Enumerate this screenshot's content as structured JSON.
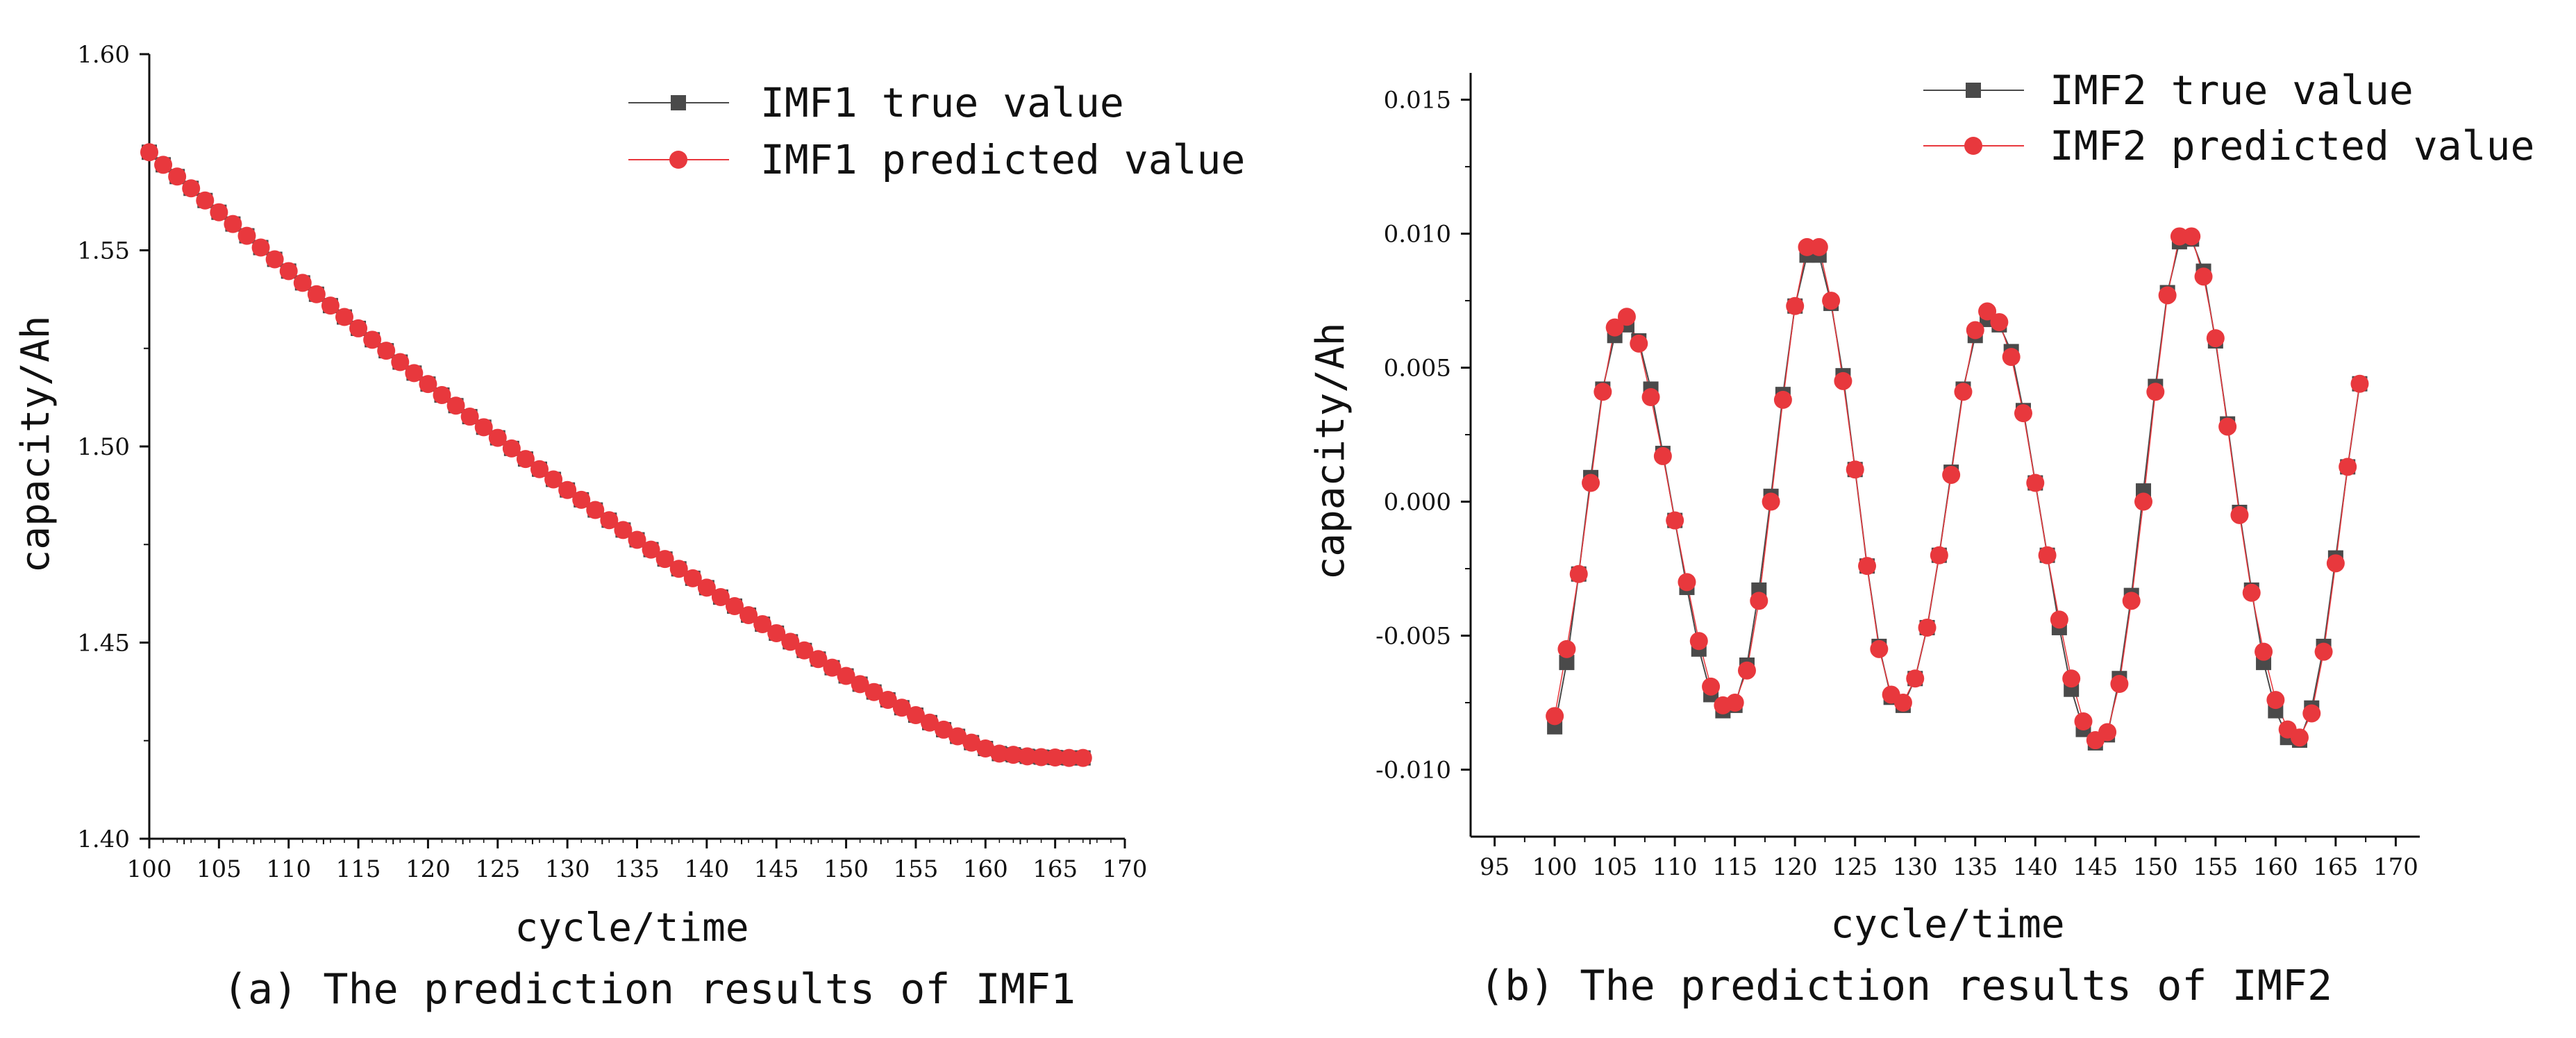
{
  "chart_data": [
    {
      "type": "line",
      "caption": "(a) The prediction results of IMF1",
      "xlabel": "cycle/time",
      "ylabel": "capacity/Ah",
      "xlim": [
        100,
        170
      ],
      "ylim": [
        1.4,
        1.6
      ],
      "x_ticks": [
        "100",
        "105",
        "110",
        "115",
        "120",
        "125",
        "130",
        "135",
        "140",
        "145",
        "150",
        "155",
        "160",
        "165",
        "170"
      ],
      "y_ticks": [
        "1.40",
        "1.45",
        "1.50",
        "1.55",
        "1.60"
      ],
      "legend_position": "top-right",
      "x_range": [
        100,
        167
      ],
      "series": [
        {
          "name": "IMF1 true value",
          "marker": "square",
          "color": "#4a4a4a",
          "values": [
            1.575,
            1.5718,
            1.5688,
            1.5658,
            1.5627,
            1.5597,
            1.5567,
            1.5537,
            1.5507,
            1.5477,
            1.5447,
            1.5417,
            1.5388,
            1.5359,
            1.533,
            1.5301,
            1.5272,
            1.5244,
            1.5215,
            1.5187,
            1.5159,
            1.5131,
            1.5104,
            1.5076,
            1.5049,
            1.5022,
            1.4995,
            1.4968,
            1.4942,
            1.4916,
            1.4889,
            1.4864,
            1.4838,
            1.4812,
            1.4787,
            1.4762,
            1.4737,
            1.4713,
            1.4688,
            1.4664,
            1.464,
            1.4616,
            1.4593,
            1.457,
            1.4547,
            1.4524,
            1.4502,
            1.448,
            1.4458,
            1.4436,
            1.4415,
            1.4394,
            1.4374,
            1.4354,
            1.4334,
            1.4315,
            1.4296,
            1.4278,
            1.4261,
            1.4245,
            1.423,
            1.4217,
            1.4214,
            1.421,
            1.4208,
            1.4207,
            1.4206,
            1.4206
          ]
        },
        {
          "name": "IMF1 predicted value",
          "marker": "circle",
          "color": "#e8383d",
          "values": [
            1.575,
            1.5718,
            1.5688,
            1.5658,
            1.5627,
            1.5597,
            1.5567,
            1.5537,
            1.5507,
            1.5477,
            1.5447,
            1.5417,
            1.5388,
            1.5359,
            1.533,
            1.5301,
            1.5272,
            1.5244,
            1.5215,
            1.5187,
            1.5159,
            1.5131,
            1.5104,
            1.5076,
            1.5049,
            1.5022,
            1.4995,
            1.4968,
            1.4942,
            1.4916,
            1.4889,
            1.4864,
            1.4838,
            1.4812,
            1.4787,
            1.4762,
            1.4737,
            1.4713,
            1.4688,
            1.4664,
            1.464,
            1.4616,
            1.4593,
            1.457,
            1.4547,
            1.4524,
            1.4502,
            1.448,
            1.4458,
            1.4436,
            1.4415,
            1.4394,
            1.4374,
            1.4354,
            1.4334,
            1.4315,
            1.4296,
            1.4278,
            1.4261,
            1.4245,
            1.423,
            1.4217,
            1.4214,
            1.421,
            1.4208,
            1.4207,
            1.4206,
            1.4206
          ]
        }
      ]
    },
    {
      "type": "line",
      "caption": "(b) The prediction results of IMF2",
      "xlabel": "cycle/time",
      "ylabel": "capacity/Ah",
      "xlim": [
        93,
        172
      ],
      "ylim": [
        -0.0125,
        0.016
      ],
      "x_ticks": [
        "95",
        "100",
        "105",
        "110",
        "115",
        "120",
        "125",
        "130",
        "135",
        "140",
        "145",
        "150",
        "155",
        "160",
        "165",
        "170"
      ],
      "y_ticks": [
        "0.015",
        "0.010",
        "0.005",
        "0.000",
        "-0.005",
        "-0.010"
      ],
      "legend_position": "top-right",
      "x_range": [
        100,
        167
      ],
      "series": [
        {
          "name": "IMF2 true value",
          "marker": "square",
          "color": "#4a4a4a",
          "values": [
            -0.0084,
            -0.006,
            -0.0027,
            0.0009,
            0.0042,
            0.0062,
            0.0066,
            0.006,
            0.0042,
            0.0018,
            -0.0007,
            -0.0032,
            -0.0055,
            -0.0072,
            -0.0078,
            -0.0076,
            -0.0061,
            -0.0033,
            0.0002,
            0.004,
            0.0073,
            0.0092,
            0.0092,
            0.0074,
            0.0047,
            0.0012,
            -0.0024,
            -0.0054,
            -0.0073,
            -0.0076,
            -0.0066,
            -0.0047,
            -0.002,
            0.0011,
            0.0042,
            0.0062,
            0.0068,
            0.0066,
            0.0056,
            0.0034,
            0.0007,
            -0.002,
            -0.0047,
            -0.007,
            -0.0085,
            -0.009,
            -0.0087,
            -0.0066,
            -0.0035,
            0.0004,
            0.0043,
            0.0078,
            0.0097,
            0.0098,
            0.0086,
            0.006,
            0.0029,
            -0.0004,
            -0.0033,
            -0.006,
            -0.0078,
            -0.0088,
            -0.0089,
            -0.0077,
            -0.0054,
            -0.0021,
            0.0013,
            0.0044
          ]
        },
        {
          "name": "IMF2 predicted value",
          "marker": "circle",
          "color": "#e8383d",
          "values": [
            -0.008,
            -0.0055,
            -0.0027,
            0.0007,
            0.0041,
            0.0065,
            0.0069,
            0.0059,
            0.0039,
            0.0017,
            -0.0007,
            -0.003,
            -0.0052,
            -0.0069,
            -0.0076,
            -0.0075,
            -0.0063,
            -0.0037,
            0.0,
            0.0038,
            0.0073,
            0.0095,
            0.0095,
            0.0075,
            0.0045,
            0.0012,
            -0.0024,
            -0.0055,
            -0.0072,
            -0.0075,
            -0.0066,
            -0.0047,
            -0.002,
            0.001,
            0.0041,
            0.0064,
            0.0071,
            0.0067,
            0.0054,
            0.0033,
            0.0007,
            -0.002,
            -0.0044,
            -0.0066,
            -0.0082,
            -0.0089,
            -0.0086,
            -0.0068,
            -0.0037,
            0.0,
            0.0041,
            0.0077,
            0.0099,
            0.0099,
            0.0084,
            0.0061,
            0.0028,
            -0.0005,
            -0.0034,
            -0.0056,
            -0.0074,
            -0.0085,
            -0.0088,
            -0.0079,
            -0.0056,
            -0.0023,
            0.0013,
            0.0044
          ]
        }
      ]
    }
  ]
}
